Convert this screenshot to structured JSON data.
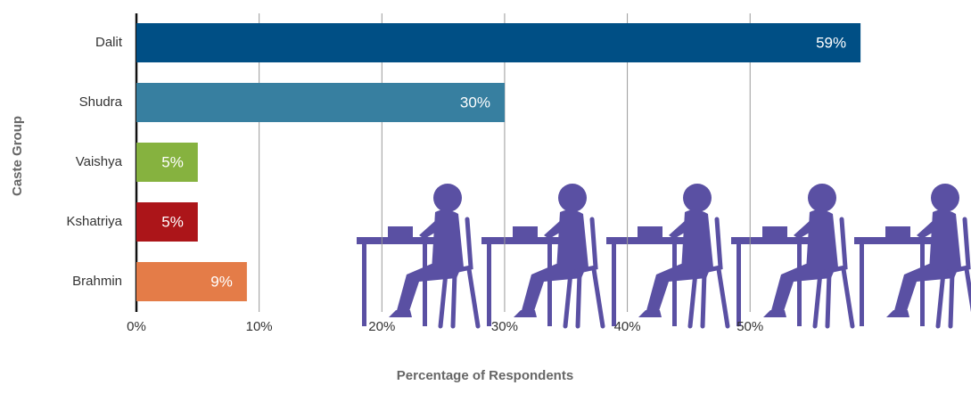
{
  "chart_data": {
    "type": "bar",
    "orientation": "horizontal",
    "categories": [
      "Dalit",
      "Shudra",
      "Vaishya",
      "Kshatriya",
      "Brahmin"
    ],
    "values": [
      59,
      30,
      5,
      5,
      9
    ],
    "value_labels": [
      "59%",
      "30%",
      "5%",
      "5%",
      "9%"
    ],
    "colors": [
      "#004f85",
      "#377fa0",
      "#86b23f",
      "#ac1519",
      "#e47c48"
    ],
    "xlim": [
      0,
      68
    ],
    "xticks": [
      {
        "value": 0,
        "label": "0%"
      },
      {
        "value": 10,
        "label": "10%"
      },
      {
        "value": 20,
        "label": "20%"
      },
      {
        "value": 30,
        "label": "30%"
      },
      {
        "value": 40,
        "label": "40%"
      },
      {
        "value": 50,
        "label": "50%"
      }
    ],
    "grid": true,
    "xlabel": "Percentage of Respondents",
    "ylabel": "Caste Group"
  }
}
